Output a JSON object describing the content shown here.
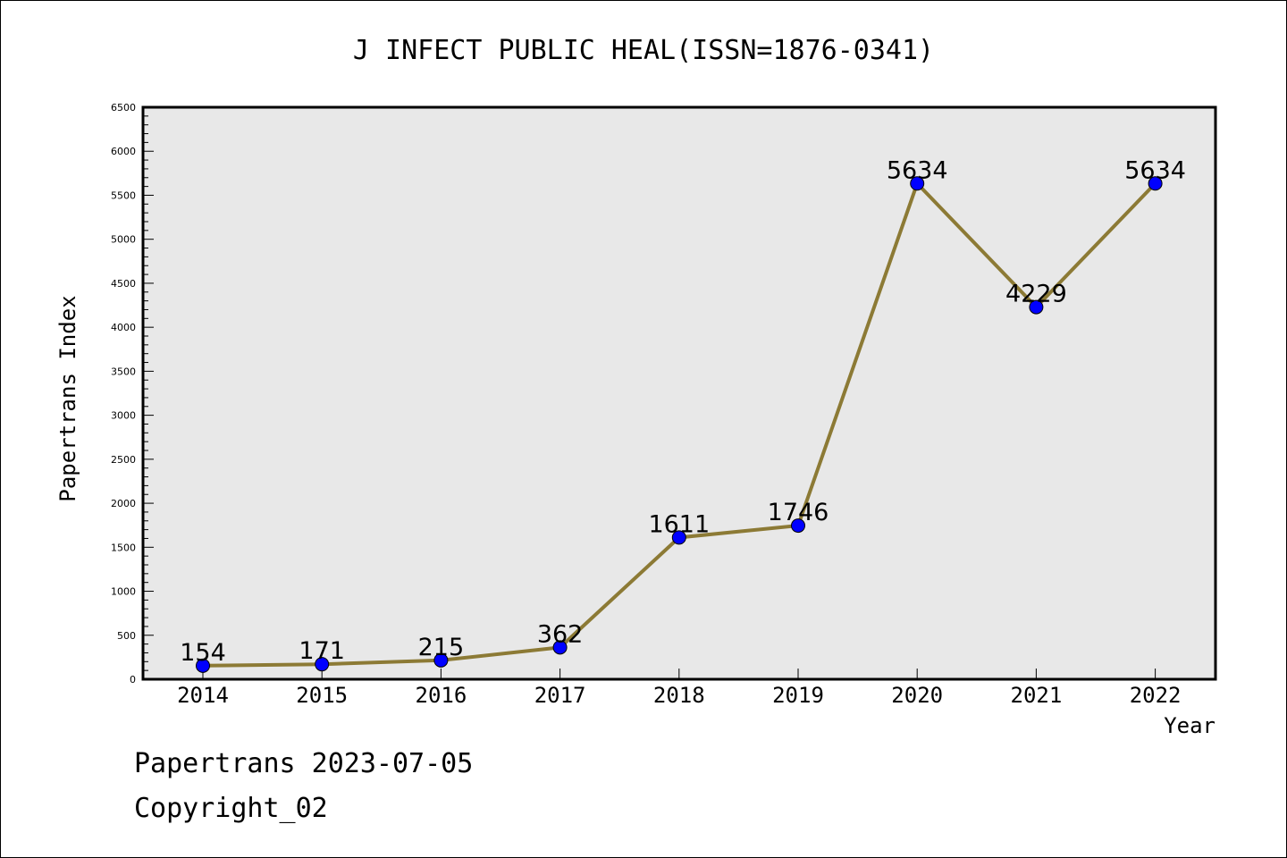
{
  "chart_data": {
    "type": "line",
    "title": "J INFECT PUBLIC HEAL(ISSN=1876-0341)",
    "xlabel": "Year",
    "ylabel": "Papertrans Index",
    "categories": [
      "2014",
      "2015",
      "2016",
      "2017",
      "2018",
      "2019",
      "2020",
      "2021",
      "2022"
    ],
    "series": [
      {
        "values": [
          154,
          171,
          215,
          362,
          1611,
          1746,
          5634,
          4229,
          5634
        ]
      }
    ],
    "data_labels": [
      "154",
      "171",
      "215",
      "362",
      "1611",
      "1746",
      "5634",
      "4229",
      "5634"
    ],
    "ylim": [
      0,
      6500
    ],
    "yticks": [
      0,
      500,
      1000,
      1500,
      2000,
      2500,
      3000,
      3500,
      4000,
      4500,
      5000,
      5500,
      6000,
      6500
    ],
    "line_color": "#8c7a35",
    "marker_color": "#0000ff",
    "plot_background": "#e8e8e8",
    "grid": false
  },
  "footer": {
    "date_line": "Papertrans 2023-07-05",
    "copyright": "Copyright_02"
  }
}
